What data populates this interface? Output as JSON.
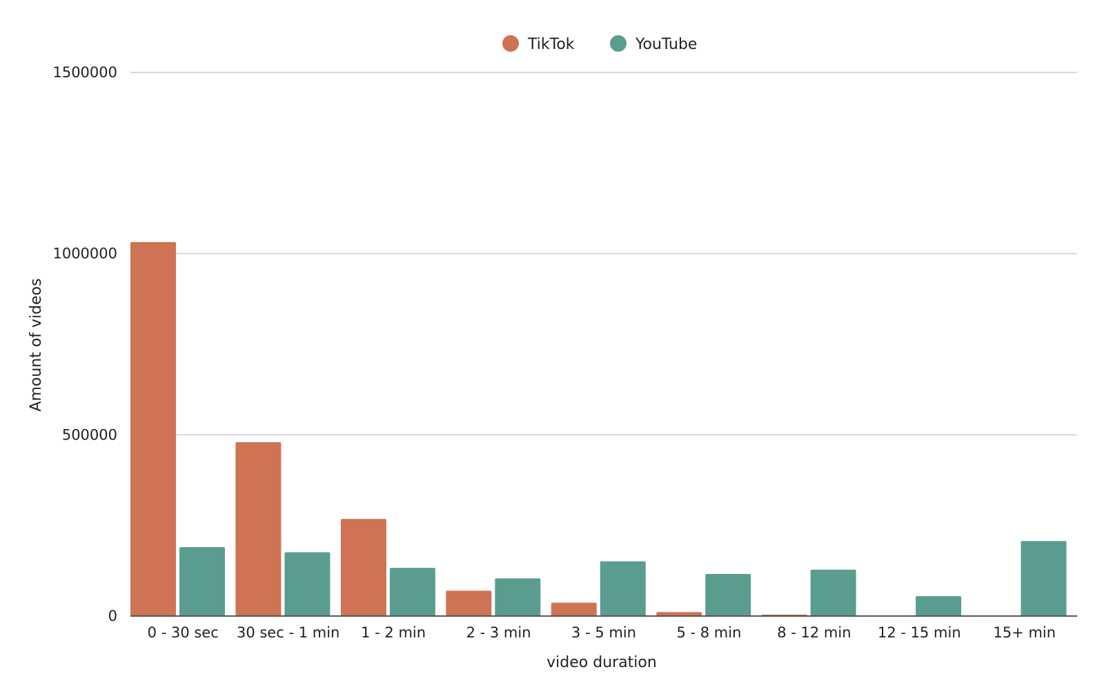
{
  "chart_data": {
    "type": "bar",
    "title": "",
    "xlabel": "video duration",
    "ylabel": "Amount of videos",
    "categories": [
      "0 - 30 sec",
      "30 sec - 1 min",
      "1 - 2 min",
      "2 - 3 min",
      "3 - 5 min",
      "5 - 8 min",
      "8 - 12 min",
      "12 - 15 min",
      "15+ min"
    ],
    "series": [
      {
        "name": "TikTok",
        "color": "#cf7355",
        "values": [
          1032000,
          480000,
          268000,
          70000,
          37000,
          11000,
          4000,
          0,
          0
        ]
      },
      {
        "name": "YouTube",
        "color": "#5a9d90",
        "values": [
          190000,
          176000,
          133000,
          104000,
          151000,
          116000,
          128000,
          55000,
          207000
        ]
      }
    ],
    "ylim": [
      0,
      1500000
    ],
    "yticks": [
      0,
      500000,
      1000000,
      1500000
    ],
    "ytick_labels": [
      "0",
      "500000",
      "1000000",
      "1500000"
    ],
    "grid": true,
    "legend_position": "top-center"
  }
}
